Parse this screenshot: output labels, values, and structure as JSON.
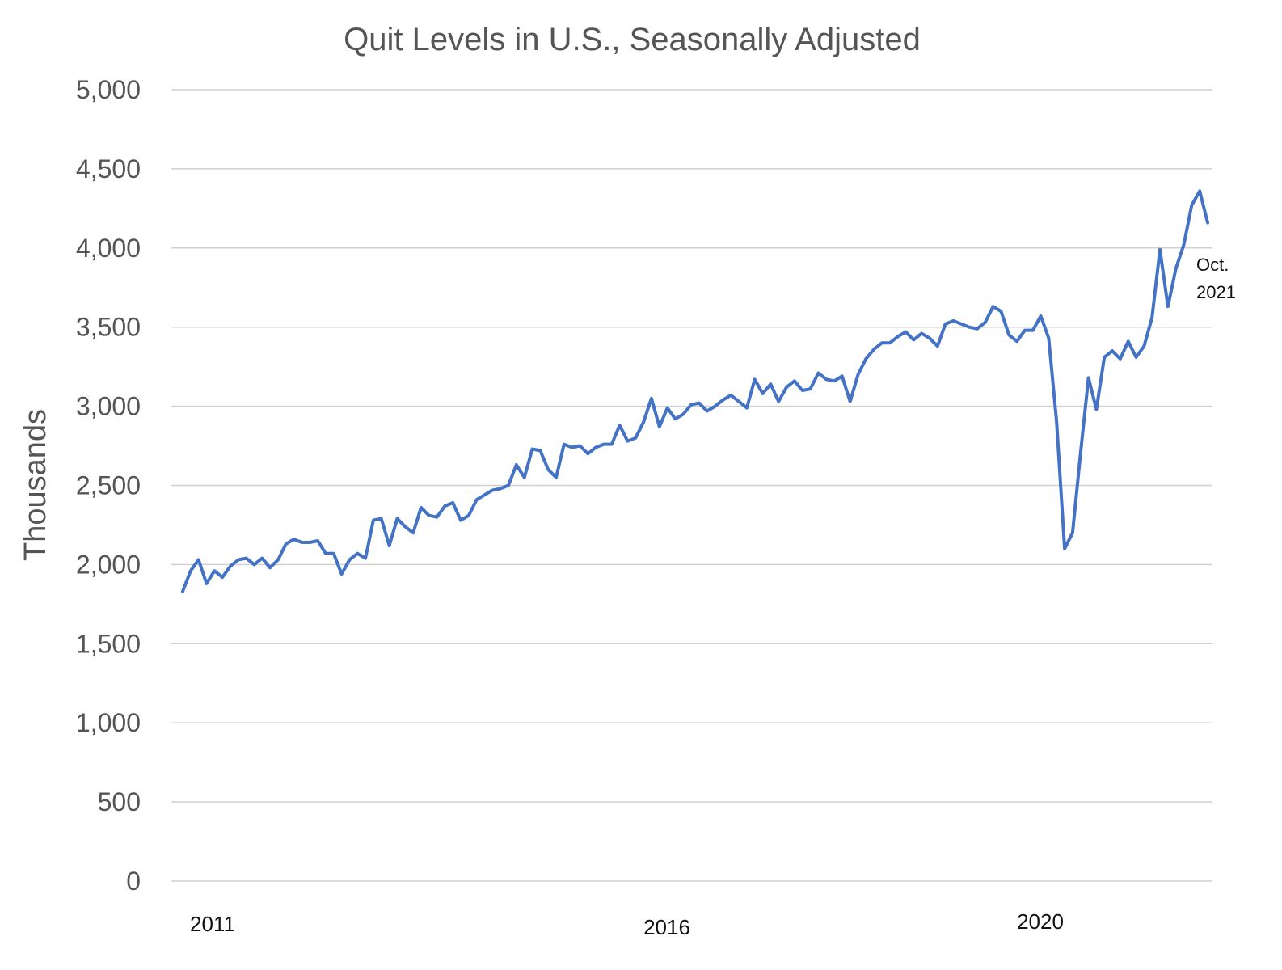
{
  "chart_data": {
    "type": "line",
    "title": "Quit Levels in U.S., Seasonally Adjusted",
    "xlabel": "",
    "ylabel": "Thousands",
    "ylim": [
      0,
      5000
    ],
    "yticks": [
      0,
      500,
      1000,
      1500,
      2000,
      2500,
      3000,
      3500,
      4000,
      4500,
      5000
    ],
    "ytick_labels": [
      "0",
      "500",
      "1,000",
      "1,500",
      "2,000",
      "2,500",
      "3,000",
      "3,500",
      "4,000",
      "4,500",
      "5,000"
    ],
    "xtick_labels": [
      "2011",
      "2016",
      "2020"
    ],
    "grid": true,
    "legend": "none",
    "annotation": [
      "Oct.",
      "2021"
    ],
    "series": [
      {
        "color": "#4472c4",
        "values": [
          1830,
          1960,
          2030,
          1880,
          1960,
          1920,
          1990,
          2030,
          2040,
          2000,
          2040,
          1980,
          2030,
          2130,
          2160,
          2140,
          2140,
          2150,
          2070,
          2070,
          1940,
          2030,
          2070,
          2040,
          2280,
          2290,
          2120,
          2290,
          2240,
          2200,
          2360,
          2310,
          2300,
          2370,
          2390,
          2280,
          2310,
          2410,
          2440,
          2470,
          2480,
          2500,
          2630,
          2550,
          2730,
          2720,
          2600,
          2550,
          2760,
          2740,
          2750,
          2700,
          2740,
          2760,
          2760,
          2880,
          2780,
          2800,
          2900,
          3050,
          2870,
          2990,
          2920,
          2950,
          3010,
          3020,
          2970,
          3000,
          3040,
          3070,
          3030,
          2990,
          3170,
          3080,
          3140,
          3030,
          3120,
          3160,
          3100,
          3110,
          3210,
          3170,
          3160,
          3190,
          3030,
          3200,
          3300,
          3360,
          3400,
          3400,
          3440,
          3470,
          3420,
          3460,
          3430,
          3380,
          3520,
          3540,
          3520,
          3500,
          3490,
          3530,
          3630,
          3600,
          3450,
          3410,
          3480,
          3480,
          3570,
          3430,
          2900,
          2100,
          2200,
          2700,
          3180,
          2980,
          3310,
          3350,
          3300,
          3410,
          3310,
          3380,
          3560,
          3990,
          3630,
          3870,
          4020,
          4270,
          4360,
          4160
        ]
      }
    ]
  }
}
